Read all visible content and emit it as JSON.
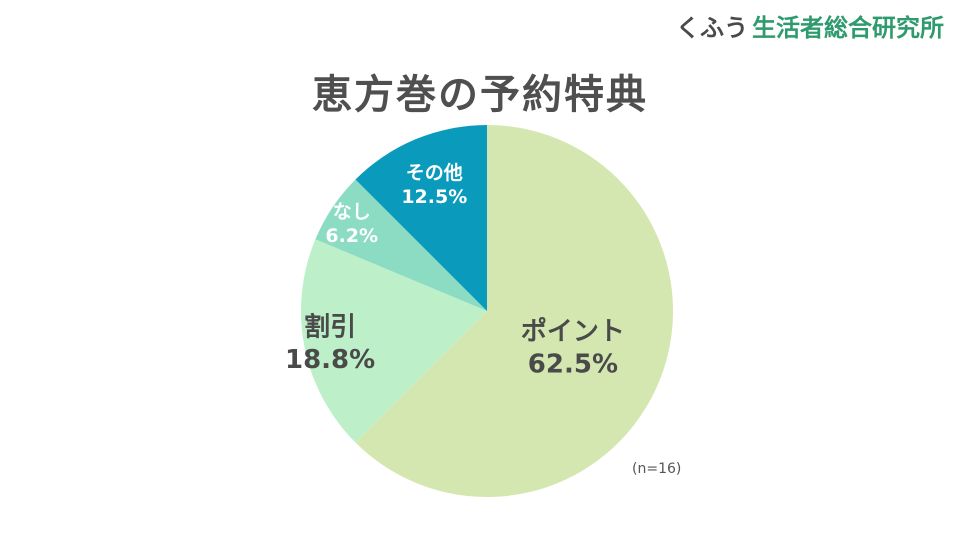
{
  "brand": {
    "kana": "くふう",
    "org": "生活者総合研究所"
  },
  "sample_note": "(n=16)",
  "chart_data": {
    "type": "pie",
    "title": "恵方巻の予約特典",
    "start_angle_deg": 0,
    "direction": "clockwise",
    "legend": "none",
    "slices": [
      {
        "label": "ポイント",
        "value": 62.5,
        "value_label": "62.5%",
        "color": "#d5e7b0",
        "text_color": "#4a4a4a"
      },
      {
        "label": "割引",
        "value": 18.8,
        "value_label": "18.8%",
        "color": "#bdf0c8",
        "text_color": "#4a4a4a"
      },
      {
        "label": "なし",
        "value": 6.2,
        "value_label": "6.2%",
        "color": "#8cdcc4",
        "text_color": "#ffffff"
      },
      {
        "label": "その他",
        "value": 12.5,
        "value_label": "12.5%",
        "color": "#0a9abc",
        "text_color": "#ffffff"
      }
    ]
  }
}
